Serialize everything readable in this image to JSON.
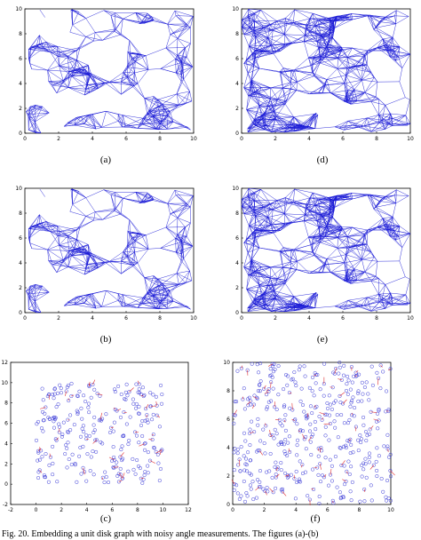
{
  "figure": {
    "caption_fragment": "Fig. 20. Embedding a unit disk graph with noisy angle measurements. The figures (a)-(b)",
    "colors": {
      "edge": "#1a1ad6",
      "axis": "#000000",
      "node_ring": "#3a3ad8",
      "error": "#e03030"
    },
    "panels": [
      {
        "id": "a",
        "label": "(a)",
        "kind": "graph-plot",
        "xticks": [
          "0",
          "2",
          "4",
          "6",
          "8",
          "10"
        ],
        "yticks": [
          "0",
          "2",
          "4",
          "6",
          "8",
          "10"
        ]
      },
      {
        "id": "d",
        "label": "(d)",
        "kind": "graph-plot",
        "xticks": [
          "0",
          "2",
          "4",
          "6",
          "8",
          "10"
        ],
        "yticks": [
          "0",
          "2",
          "4",
          "6",
          "8",
          "10"
        ]
      },
      {
        "id": "b",
        "label": "(b)",
        "kind": "graph-plot",
        "xticks": [
          "0",
          "2",
          "4",
          "6",
          "8",
          "10"
        ],
        "yticks": [
          "0",
          "2",
          "4",
          "6",
          "8",
          "10"
        ]
      },
      {
        "id": "e",
        "label": "(e)",
        "kind": "graph-plot",
        "xticks": [
          "0",
          "2",
          "4",
          "6",
          "8",
          "10"
        ],
        "yticks": [
          "0",
          "2",
          "4",
          "6",
          "8",
          "10"
        ]
      },
      {
        "id": "c",
        "label": "(c)",
        "kind": "scatter-plot",
        "xticks": [
          "-2",
          "0",
          "2",
          "4",
          "6",
          "8",
          "10",
          "12"
        ],
        "yticks": [
          "-2",
          "0",
          "2",
          "4",
          "6",
          "8",
          "10",
          "12"
        ]
      },
      {
        "id": "f",
        "label": "(f)",
        "kind": "scatter-plot",
        "xticks": [
          "0",
          "2",
          "4",
          "6",
          "8",
          "10"
        ],
        "yticks": [
          "0",
          "2",
          "4",
          "6",
          "8",
          "10"
        ]
      }
    ]
  }
}
